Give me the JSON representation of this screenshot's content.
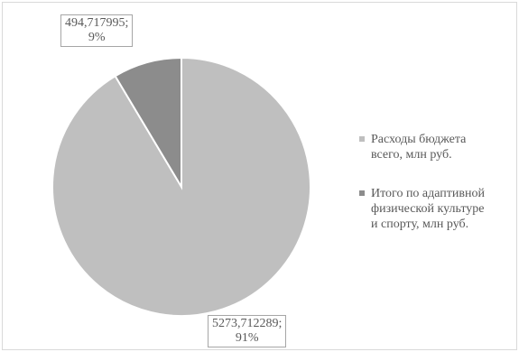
{
  "chart_data": {
    "type": "pie",
    "slices": [
      {
        "label": "Расходы бюджета всего, млн руб.",
        "value": 5273.712289,
        "value_text": "5273,712289;",
        "percent_text": "91%",
        "color": "#bfbfbf"
      },
      {
        "label": "Итого по адаптивной физической культуре и спорту, млн руб.",
        "value": 494.717995,
        "value_text": "494,717995;",
        "percent_text": "9%",
        "color": "#8c8c8c"
      }
    ],
    "legend_position": "right",
    "title": ""
  },
  "legend": {
    "items": [
      {
        "lines": [
          "Расходы бюджета",
          "всего, млн руб."
        ],
        "color": "#bfbfbf"
      },
      {
        "lines": [
          "Итого по адаптивной",
          "физической культуре",
          "и спорту, млн руб."
        ],
        "color": "#8c8c8c"
      }
    ]
  }
}
